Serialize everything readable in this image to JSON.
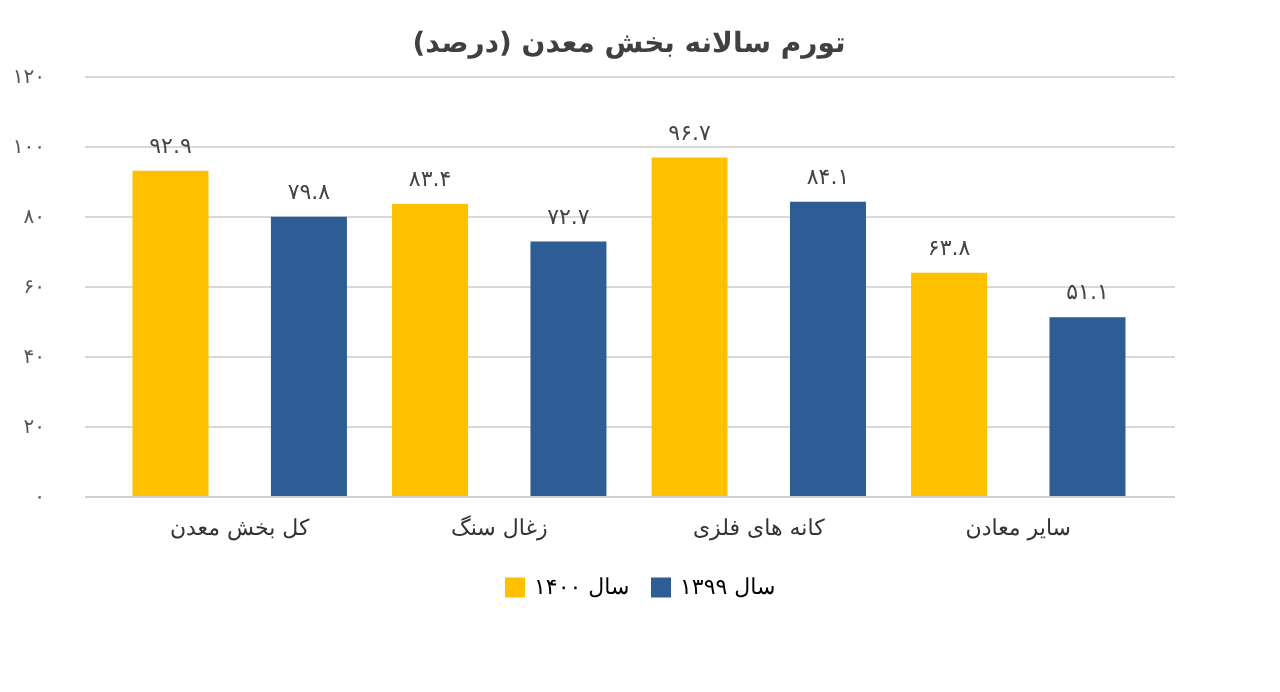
{
  "chart_data": {
    "type": "bar",
    "title": "تورم سالانه بخش معدن (درصد)",
    "categories": [
      "کل بخش معدن",
      "زغال سنگ",
      "کانه های فلزی",
      "سایر معادن"
    ],
    "series": [
      {
        "name": "سال ۱۴۰۰",
        "color": "#ffc000",
        "values": [
          92.9,
          83.4,
          96.7,
          63.8
        ],
        "value_labels": [
          "۹۲.۹",
          "۸۳.۴",
          "۹۶.۷",
          "۶۳.۸"
        ]
      },
      {
        "name": "سال ۱۳۹۹",
        "color": "#2e5c94",
        "values": [
          79.8,
          72.7,
          84.1,
          51.1
        ],
        "value_labels": [
          "۷۹.۸",
          "۷۲.۷",
          "۸۴.۱",
          "۵۱.۱"
        ]
      }
    ],
    "ylim": [
      0,
      120
    ],
    "yticks": [
      {
        "value": 0,
        "label": "۰"
      },
      {
        "value": 20,
        "label": "۲۰"
      },
      {
        "value": 40,
        "label": "۴۰"
      },
      {
        "value": 60,
        "label": "۶۰"
      },
      {
        "value": 80,
        "label": "۸۰"
      },
      {
        "value": 100,
        "label": "۱۰۰"
      },
      {
        "value": 120,
        "label": "۱۲۰"
      }
    ],
    "grid": "y",
    "legend": "bottom"
  }
}
